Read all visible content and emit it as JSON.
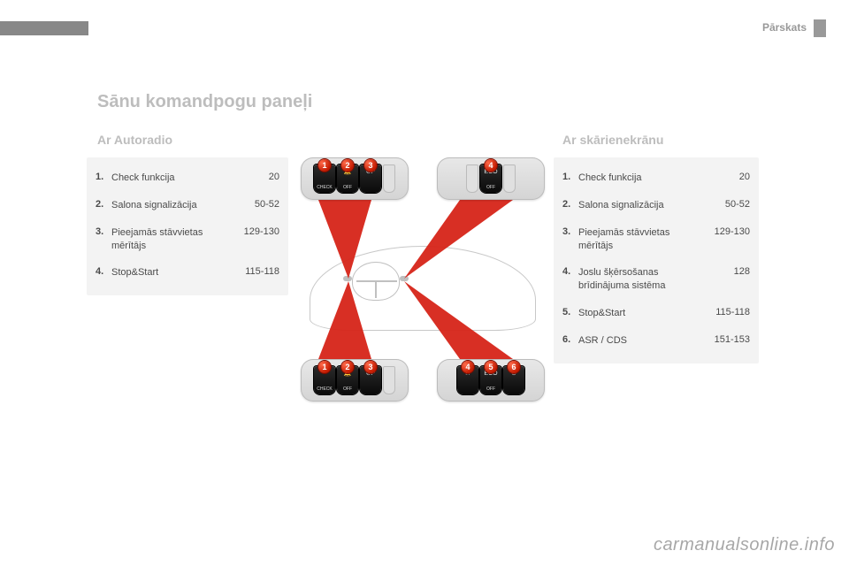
{
  "header": {
    "section": "Pārskats"
  },
  "title": "Sānu komandpogu paneļi",
  "subtitles": {
    "left": "Ar Autoradio",
    "right": "Ar skārienekrānu"
  },
  "panel_left": {
    "bg": "#f3f3f3",
    "rows": [
      {
        "n": "1.",
        "label": "Check funkcija",
        "page": "20"
      },
      {
        "n": "2.",
        "label": "Salona signalizācija",
        "page": "50-52"
      },
      {
        "n": "3.",
        "label": "Pieejamās stāvvietas mērītājs",
        "page": "129-130"
      },
      {
        "n": "4.",
        "label": "Stop&Start",
        "page": "115-118"
      }
    ]
  },
  "panel_right": {
    "bg": "#f3f3f3",
    "rows": [
      {
        "n": "1.",
        "label": "Check funkcija",
        "page": "20"
      },
      {
        "n": "2.",
        "label": "Salona signalizācija",
        "page": "50-52"
      },
      {
        "n": "3.",
        "label": "Pieejamās stāvvietas mērītājs",
        "page": "129-130"
      },
      {
        "n": "4.",
        "label": "Joslu šķērsošanas brīdinājuma sistēma",
        "page": "128"
      },
      {
        "n": "5.",
        "label": "Stop&Start",
        "page": "115-118"
      },
      {
        "n": "6.",
        "label": "ASR / CDS",
        "page": "151-153"
      }
    ]
  },
  "clusters": {
    "badge_color": "#d21f00",
    "tl": {
      "slots_before": 0,
      "slots_after": 1,
      "keys": [
        {
          "badge": "1",
          "glyph": "",
          "text": "CHECK"
        },
        {
          "badge": "2",
          "glyph": "🔔",
          "text": "OFF"
        },
        {
          "badge": "3",
          "glyph": "⊘P",
          "text": ""
        }
      ]
    },
    "tr": {
      "slots_before": 1,
      "slots_after": 1,
      "keys": [
        {
          "badge": "4",
          "glyph": "ECO",
          "text": "OFF"
        }
      ]
    },
    "bl": {
      "slots_before": 0,
      "slots_after": 1,
      "keys": [
        {
          "badge": "1",
          "glyph": "",
          "text": "CHECK"
        },
        {
          "badge": "2",
          "glyph": "🔔",
          "text": "OFF"
        },
        {
          "badge": "3",
          "glyph": "⊘P",
          "text": ""
        }
      ]
    },
    "br": {
      "slots_before": 0,
      "slots_after": 0,
      "keys": [
        {
          "badge": "4",
          "glyph": "⛙",
          "text": ""
        },
        {
          "badge": "5",
          "glyph": "ECO",
          "text": "OFF"
        },
        {
          "badge": "6",
          "glyph": "⊘",
          "text": ""
        }
      ]
    }
  },
  "watermark": "carmanualsonline.info",
  "colors": {
    "title_gray": "#bdbdbd",
    "text_gray": "#4a4a4a",
    "ray_red": "#d22222"
  }
}
